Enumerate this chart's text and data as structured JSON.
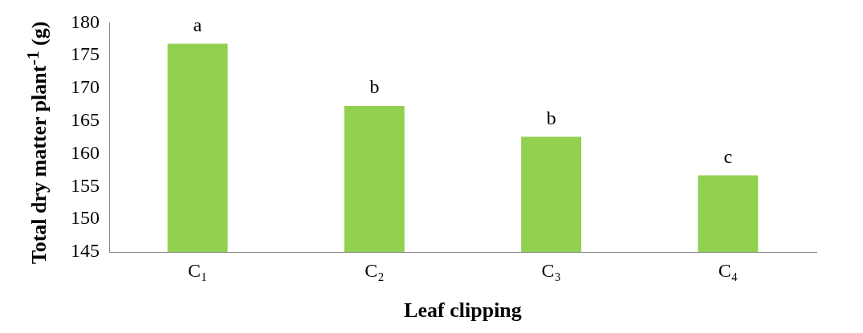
{
  "chart_data": {
    "type": "bar",
    "xlabel": "Leaf clipping",
    "ylabel": "Total dry matter plant$^{-1}$ (g)",
    "categories": [
      "C₁",
      "C₂",
      "C₃",
      "C₄"
    ],
    "values": [
      176.8,
      167.3,
      162.6,
      156.7
    ],
    "color": "#92d050",
    "ylim": [
      145,
      180
    ],
    "yticks": [
      145,
      150,
      155,
      160,
      165,
      170,
      175,
      180
    ],
    "grid": false,
    "legend": false,
    "annotations": [
      {
        "text": "a",
        "x": "C₁",
        "y": 176.8
      },
      {
        "text": "b",
        "x": "C₂",
        "y": 167.3
      },
      {
        "text": "b",
        "x": "C₃",
        "y": 162.6
      },
      {
        "text": "c",
        "x": "C₄",
        "y": 156.7
      }
    ]
  }
}
